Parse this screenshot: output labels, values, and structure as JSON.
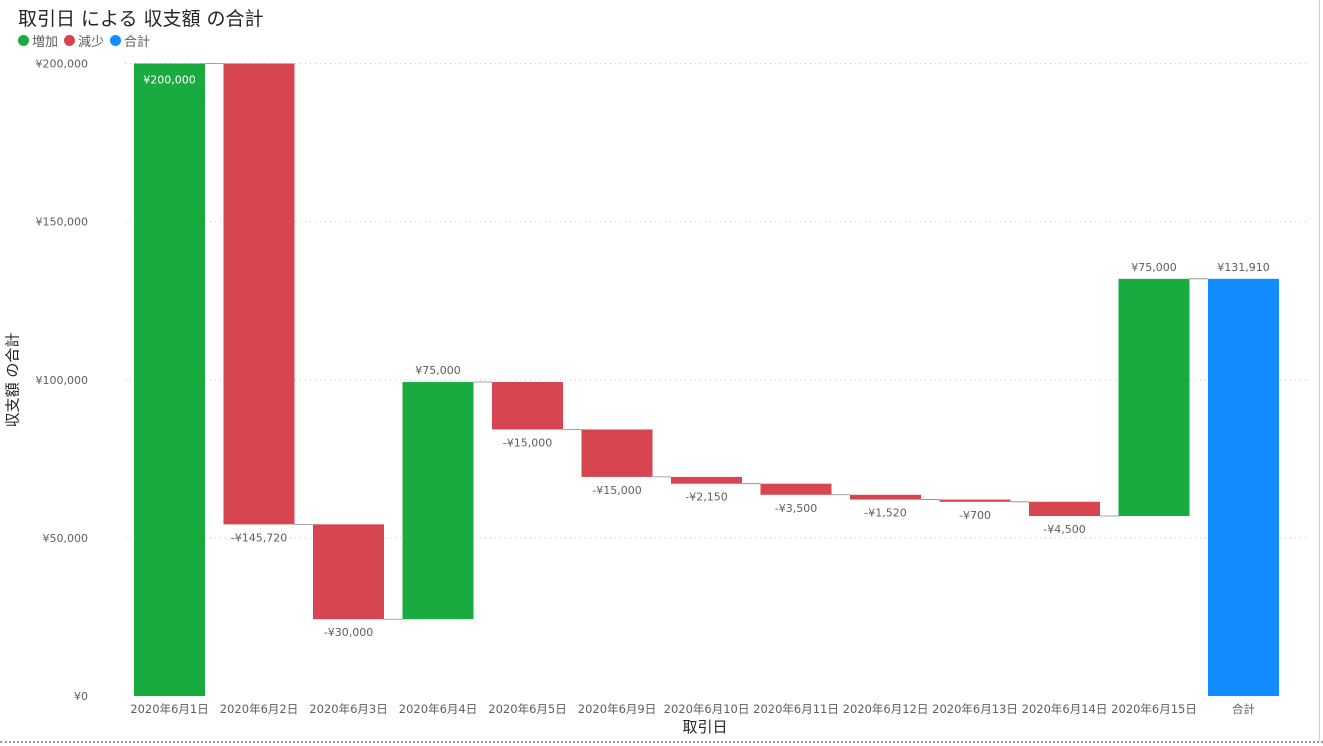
{
  "chart_data": {
    "type": "waterfall",
    "title": "取引日 による 収支額 の合計",
    "xlabel": "取引日",
    "ylabel": "収支額 の合計",
    "ylim": [
      0,
      200000
    ],
    "yticks": [
      0,
      50000,
      100000,
      150000,
      200000
    ],
    "ytick_labels": [
      "¥0",
      "¥50,000",
      "¥100,000",
      "¥150,000",
      "¥200,000"
    ],
    "grid": true,
    "legend": {
      "position": "top-left",
      "items": [
        {
          "label": "増加",
          "color": "#1aab40"
        },
        {
          "label": "減少",
          "color": "#d64550"
        },
        {
          "label": "合計",
          "color": "#118dff"
        }
      ]
    },
    "categories": [
      "2020年6月1日",
      "2020年6月2日",
      "2020年6月3日",
      "2020年6月4日",
      "2020年6月5日",
      "2020年6月9日",
      "2020年6月10日",
      "2020年6月11日",
      "2020年6月12日",
      "2020年6月13日",
      "2020年6月14日",
      "2020年6月15日",
      "合計"
    ],
    "values": [
      200000,
      -145720,
      -30000,
      75000,
      -15000,
      -15000,
      -2150,
      -3500,
      -1520,
      -700,
      -4500,
      75000,
      131910
    ],
    "data_labels": [
      "¥200,000",
      "-¥145,720",
      "-¥30,000",
      "¥75,000",
      "-¥15,000",
      "-¥15,000",
      "-¥2,150",
      "-¥3,500",
      "-¥1,520",
      "-¥700",
      "-¥4,500",
      "¥75,000",
      "¥131,910"
    ],
    "total_index": 12
  }
}
